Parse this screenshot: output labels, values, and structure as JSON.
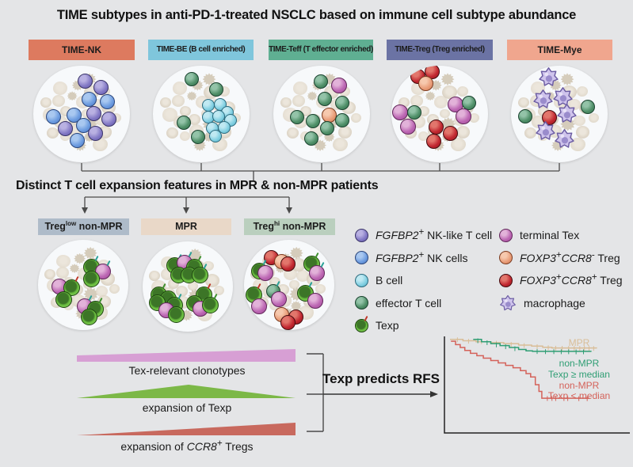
{
  "title": "TIME subtypes in anti-PD-1-treated NSCLC based on immune cell subtype abundance",
  "section2_heading": "Distinct T cell expansion features in MPR & non-MPR patients",
  "flow_label": "Texp predicts RFS",
  "background_color": "#e4e5e7",
  "subtype_boxes": [
    {
      "label": "TIME-NK",
      "color": "#dd7a5f"
    },
    {
      "label": "TIME-BE (B cell enriched)",
      "color": "#7fc6dc"
    },
    {
      "label": "TIME-Teff (T effector enriched)",
      "color": "#5faf92"
    },
    {
      "label": "TIME-Treg (Treg enriched)",
      "color": "#6b73a4"
    },
    {
      "label": "TIME-Mye",
      "color": "#f0a68e"
    }
  ],
  "group_labels": [
    {
      "segments": [
        {
          "t": "Treg"
        },
        {
          "t": "low",
          "s": true
        },
        {
          "t": " non-MPR"
        }
      ],
      "color": "#aebbc9"
    },
    {
      "segments": [
        {
          "t": "MPR"
        }
      ],
      "color": "#e9d8c8"
    },
    {
      "segments": [
        {
          "t": "Treg"
        },
        {
          "t": "hi",
          "s": true
        },
        {
          "t": " non-MPR"
        }
      ],
      "color": "#bacfbe"
    }
  ],
  "cell_styles": {
    "nkT": {
      "light": "#b9b1e2",
      "fill": "#8379c5",
      "dark": "#5f55a6",
      "edge": "#3a3468"
    },
    "nk": {
      "light": "#a9c8f0",
      "fill": "#6d9ce0",
      "dark": "#4a77c0",
      "edge": "#2c477c"
    },
    "b": {
      "light": "#c0e9f2",
      "fill": "#82d0e2",
      "dark": "#55aec4",
      "edge": "#2c6b7e"
    },
    "teff": {
      "light": "#93c3a8",
      "fill": "#4f8f68",
      "dark": "#35714e",
      "edge": "#1b4430"
    },
    "texp": {
      "light": "#8ed465",
      "fill": "#68bb3d",
      "dark": "#3c7527",
      "edge": "#1d4410",
      "ring": true
    },
    "tex": {
      "light": "#e2b2d9",
      "fill": "#bc66b3",
      "dark": "#a04d98",
      "edge": "#62275b"
    },
    "treg8n": {
      "light": "#f6c9ae",
      "fill": "#e99d79",
      "dark": "#cf7b52",
      "edge": "#7c3d22"
    },
    "treg8p": {
      "light": "#e2766c",
      "fill": "#c12730",
      "dark": "#931a20",
      "edge": "#470c0f"
    },
    "mac": {
      "fill": "#cfc4ec",
      "edge": "#6b5ca3",
      "nucleus": "#9a8ccc",
      "light": "#e8e2f7"
    }
  },
  "tick_colors": {
    "t": "#2aa198",
    "r": "#c0392b",
    "g": "#3f8f2f"
  },
  "top_circles": [
    {
      "cells": [
        [
          "nkT",
          4,
          -42
        ],
        [
          "nkT",
          24,
          -34
        ],
        [
          "nk",
          9,
          -19
        ],
        [
          "nk",
          32,
          -16
        ],
        [
          "nk",
          -36,
          3
        ],
        [
          "nk",
          -10,
          1
        ],
        [
          "nkT",
          15,
          -1
        ],
        [
          "nkT",
          34,
          6
        ],
        [
          "nkT",
          -21,
          18
        ],
        [
          "nk",
          2,
          14
        ],
        [
          "nkT",
          17,
          24
        ],
        [
          "nk",
          -6,
          33
        ]
      ]
    },
    {
      "cells": [
        [
          "teff",
          -12,
          -44
        ],
        [
          "teff",
          19,
          -31
        ],
        [
          "teff",
          -22,
          11
        ],
        [
          "teff",
          -4,
          29
        ],
        [
          "b",
          9,
          -11
        ],
        [
          "b",
          24,
          -12
        ],
        [
          "b",
          33,
          -2
        ],
        [
          "b",
          9,
          4
        ],
        [
          "b",
          22,
          3
        ],
        [
          "b",
          37,
          8
        ],
        [
          "b",
          14,
          18
        ],
        [
          "b",
          29,
          17
        ],
        [
          "b",
          18,
          28
        ]
      ]
    },
    {
      "cells": [
        [
          "teff",
          -1,
          -41
        ],
        [
          "tex",
          22,
          -36
        ],
        [
          "teff",
          4,
          -19
        ],
        [
          "teff",
          26,
          -14
        ],
        [
          "teff",
          -31,
          4
        ],
        [
          "treg8n",
          9,
          1
        ],
        [
          "teff",
          -11,
          9
        ],
        [
          "teff",
          26,
          8
        ],
        [
          "teff",
          7,
          18
        ],
        [
          "teff",
          -13,
          31
        ]
      ]
    },
    {
      "cells": [
        [
          "treg8p",
          -28,
          -48
        ],
        [
          "treg8p",
          -10,
          -54
        ],
        [
          "treg8n",
          -18,
          -39
        ],
        [
          "tex",
          20,
          -12
        ],
        [
          "teff",
          37,
          -14
        ],
        [
          "tex",
          -50,
          -2
        ],
        [
          "teff",
          -32,
          -2
        ],
        [
          "tex",
          30,
          3
        ],
        [
          "tex",
          -40,
          16
        ],
        [
          "treg8p",
          -5,
          16
        ],
        [
          "treg8p",
          13,
          24
        ],
        [
          "treg8p",
          -8,
          34
        ]
      ]
    },
    {
      "cells": [
        [
          "mac",
          -14,
          -47
        ],
        [
          "mac",
          -21,
          -19
        ],
        [
          "mac",
          4,
          -22
        ],
        [
          "teff",
          36,
          -9
        ],
        [
          "teff",
          -43,
          3
        ],
        [
          "treg8p",
          -13,
          4
        ],
        [
          "mac",
          9,
          -1
        ],
        [
          "mac",
          -18,
          21
        ],
        [
          "mac",
          6,
          31
        ]
      ]
    }
  ],
  "mid_circles": [
    {
      "cells": [
        [
          "texp",
          10,
          -23,
          "t"
        ],
        [
          "tex",
          25,
          -17,
          "t"
        ],
        [
          "texp",
          10,
          -8
        ],
        [
          "tex",
          -30,
          2
        ],
        [
          "texp",
          -15,
          3,
          "r"
        ],
        [
          "texp",
          -25,
          18
        ],
        [
          "tex",
          2,
          27,
          "t"
        ],
        [
          "texp",
          15,
          30,
          "g"
        ],
        [
          "texp",
          7,
          40
        ]
      ]
    },
    {
      "cells": [
        [
          "texp",
          -17,
          -27,
          "t"
        ],
        [
          "tex",
          -4,
          -30,
          "t"
        ],
        [
          "texp",
          8,
          -25,
          "g"
        ],
        [
          "texp",
          -12,
          -15
        ],
        [
          "texp",
          1,
          -15
        ],
        [
          "texp",
          15,
          -15,
          "t"
        ],
        [
          "texp",
          -37,
          10,
          "g"
        ],
        [
          "texp",
          -25,
          15
        ],
        [
          "texp",
          -39,
          20
        ],
        [
          "texp",
          -17,
          23,
          "t"
        ],
        [
          "tex",
          -27,
          30
        ],
        [
          "texp",
          -15,
          35
        ],
        [
          "texp",
          20,
          10,
          "r"
        ],
        [
          "texp",
          8,
          21
        ],
        [
          "tex",
          16,
          28
        ],
        [
          "texp",
          28,
          23,
          "g"
        ]
      ]
    },
    {
      "cells": [
        [
          "treg8p",
          -23,
          -35
        ],
        [
          "treg8n",
          -10,
          -30
        ],
        [
          "treg8p",
          -2,
          -27
        ],
        [
          "texp",
          -38,
          -18,
          "t"
        ],
        [
          "tex",
          -30,
          -15
        ],
        [
          "texp",
          28,
          -27,
          "g"
        ],
        [
          "tex",
          35,
          -15,
          "t"
        ],
        [
          "texp",
          -45,
          12,
          "r"
        ],
        [
          "teff",
          -20,
          8,
          "t"
        ],
        [
          "tex",
          -13,
          18
        ],
        [
          "texp",
          20,
          10,
          "t"
        ],
        [
          "tex",
          33,
          20
        ],
        [
          "tex",
          -38,
          27
        ],
        [
          "treg8n",
          -10,
          37
        ],
        [
          "treg8p",
          8,
          40
        ],
        [
          "treg8p",
          -2,
          47
        ]
      ]
    }
  ],
  "legend": {
    "col1": [
      {
        "icon": "nkT",
        "segments": [
          {
            "t": "FGFBP2",
            "i": true
          },
          {
            "t": "+",
            "s": true
          },
          {
            "t": " NK-like T cell"
          }
        ]
      },
      {
        "icon": "nk",
        "segments": [
          {
            "t": "FGFBP2",
            "i": true
          },
          {
            "t": "+",
            "s": true
          },
          {
            "t": " NK cells"
          }
        ]
      },
      {
        "icon": "b",
        "segments": [
          {
            "t": "B cell"
          }
        ]
      },
      {
        "icon": "teff",
        "segments": [
          {
            "t": "effector T cell"
          }
        ]
      },
      {
        "icon": "texp",
        "segments": [
          {
            "t": "Texp"
          }
        ]
      }
    ],
    "col2": [
      {
        "icon": "tex",
        "segments": [
          {
            "t": "terminal Tex"
          }
        ]
      },
      {
        "icon": "treg8n",
        "segments": [
          {
            "t": "FOXP3",
            "i": true
          },
          {
            "t": "+",
            "s": true
          },
          {
            "t": "CCR8",
            "i": true
          },
          {
            "t": "-",
            "s": true
          },
          {
            "t": " Treg"
          }
        ]
      },
      {
        "icon": "treg8p",
        "segments": [
          {
            "t": "FOXP3",
            "i": true
          },
          {
            "t": "+",
            "s": true
          },
          {
            "t": "CCR8",
            "i": true
          },
          {
            "t": "+",
            "s": true
          },
          {
            "t": " Treg"
          }
        ]
      },
      {
        "icon": "mac",
        "segments": [
          {
            "t": "macrophage"
          }
        ]
      }
    ]
  },
  "wedges": [
    {
      "color": "#d79fd4",
      "segments": [
        {
          "t": "Tex-relevant clonotypes"
        }
      ]
    },
    {
      "color": "#7cb847",
      "segments": [
        {
          "t": "expansion of Texp"
        }
      ]
    },
    {
      "color": "#c8695e",
      "segments": [
        {
          "t": "expansion of "
        },
        {
          "t": "CCR8",
          "i": true
        },
        {
          "t": "+",
          "s": true
        },
        {
          "t": " Tregs"
        }
      ]
    }
  ],
  "chart_data": {
    "type": "line",
    "subtype": "kaplan-meier",
    "title": "",
    "xlabel": "",
    "ylabel": "",
    "x_range_fraction": [
      0,
      1
    ],
    "survival_range": [
      0,
      1
    ],
    "grid": false,
    "legend_position": "right-inside",
    "series": [
      {
        "name": "MPR",
        "color": "#d9bd97",
        "label_lines": [
          "MPR"
        ],
        "steps": [
          [
            0.03,
            0.97
          ],
          [
            0.1,
            0.955
          ],
          [
            0.17,
            0.945
          ],
          [
            0.25,
            0.935
          ],
          [
            0.32,
            0.925
          ],
          [
            0.4,
            0.91
          ],
          [
            0.47,
            0.9
          ],
          [
            0.53,
            0.888
          ],
          [
            0.58,
            0.88
          ],
          [
            0.82,
            0.875
          ]
        ],
        "censors": [
          [
            0.07,
            0.965
          ],
          [
            0.13,
            0.95
          ],
          [
            0.2,
            0.945
          ],
          [
            0.28,
            0.93
          ],
          [
            0.36,
            0.917
          ],
          [
            0.43,
            0.905
          ],
          [
            0.5,
            0.893
          ],
          [
            0.56,
            0.883
          ],
          [
            0.6,
            0.878
          ],
          [
            0.635,
            0.877
          ],
          [
            0.67,
            0.876
          ],
          [
            0.7,
            0.876
          ],
          [
            0.73,
            0.876
          ],
          [
            0.755,
            0.876
          ],
          [
            0.78,
            0.875
          ],
          [
            0.805,
            0.875
          ]
        ]
      },
      {
        "name": "non-MPR Texp >= median",
        "color": "#2f9e74",
        "label_lines": [
          "non-MPR",
          "Texp ≥ median"
        ],
        "steps": [
          [
            0.155,
            0.97
          ],
          [
            0.2,
            0.945
          ],
          [
            0.25,
            0.925
          ],
          [
            0.3,
            0.905
          ],
          [
            0.35,
            0.885
          ],
          [
            0.4,
            0.865
          ],
          [
            0.44,
            0.85
          ],
          [
            0.475,
            0.845
          ],
          [
            0.79,
            0.84
          ]
        ],
        "censors": [
          [
            0.18,
            0.955
          ],
          [
            0.23,
            0.935
          ],
          [
            0.28,
            0.912
          ],
          [
            0.33,
            0.893
          ],
          [
            0.38,
            0.873
          ],
          [
            0.5,
            0.843
          ],
          [
            0.545,
            0.842
          ],
          [
            0.59,
            0.842
          ],
          [
            0.63,
            0.841
          ],
          [
            0.67,
            0.841
          ],
          [
            0.71,
            0.84
          ],
          [
            0.75,
            0.84
          ]
        ]
      },
      {
        "name": "non-MPR Texp < median",
        "color": "#d4625a",
        "label_lines": [
          "non-MPR",
          "Texp < median"
        ],
        "steps": [
          [
            0.035,
            0.95
          ],
          [
            0.06,
            0.915
          ],
          [
            0.085,
            0.885
          ],
          [
            0.11,
            0.855
          ],
          [
            0.14,
            0.825
          ],
          [
            0.175,
            0.8
          ],
          [
            0.21,
            0.775
          ],
          [
            0.25,
            0.75
          ],
          [
            0.29,
            0.725
          ],
          [
            0.33,
            0.7
          ],
          [
            0.37,
            0.675
          ],
          [
            0.41,
            0.645
          ],
          [
            0.44,
            0.615
          ],
          [
            0.465,
            0.58
          ],
          [
            0.49,
            0.5
          ],
          [
            0.51,
            0.43
          ],
          [
            0.525,
            0.36
          ],
          [
            0.78,
            0.355
          ]
        ],
        "censors": [
          [
            0.555,
            0.357
          ],
          [
            0.58,
            0.357
          ],
          [
            0.6,
            0.356
          ],
          [
            0.665,
            0.356
          ],
          [
            0.725,
            0.355
          ],
          [
            0.77,
            0.355
          ]
        ]
      }
    ]
  }
}
